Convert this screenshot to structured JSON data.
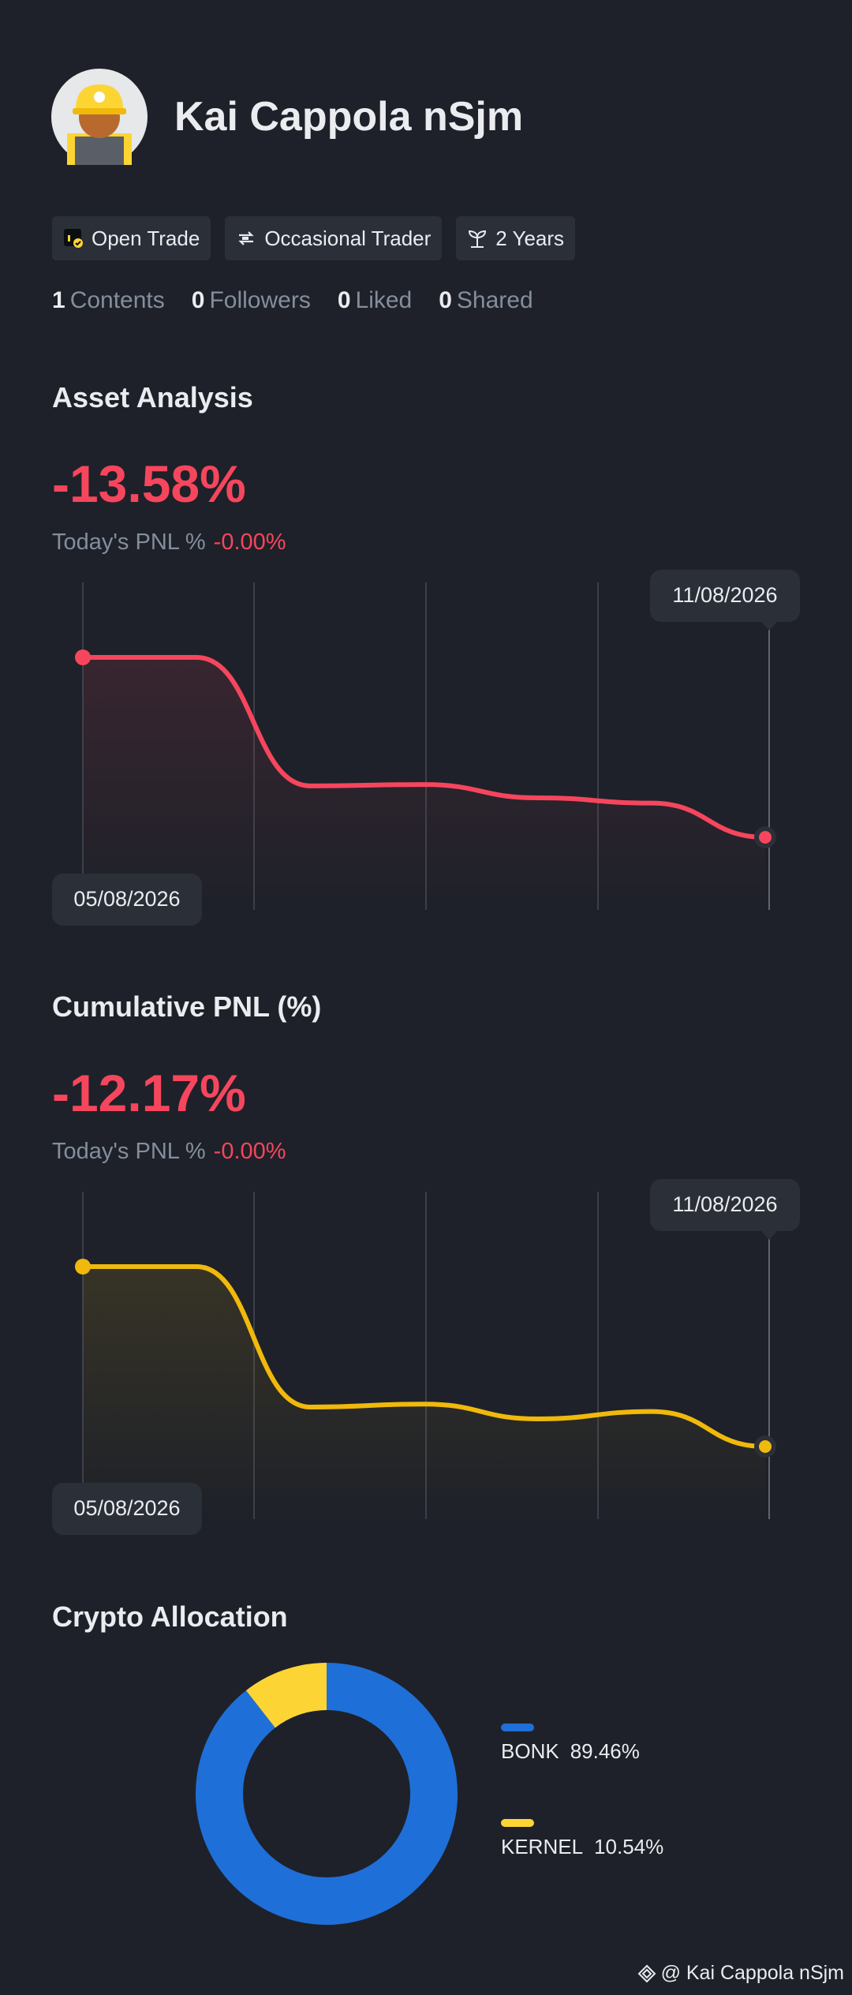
{
  "profile": {
    "name": "Kai Cappola nSjm",
    "tags": [
      "Open Trade",
      "Occasional Trader",
      "2 Years"
    ],
    "stats": [
      {
        "value": 1,
        "label": "Contents"
      },
      {
        "value": 0,
        "label": "Followers"
      },
      {
        "value": 0,
        "label": "Liked"
      },
      {
        "value": 0,
        "label": "Shared"
      }
    ]
  },
  "chart_data": [
    {
      "type": "line",
      "title": "Asset Analysis",
      "summary_value": "-13.58%",
      "today_label": "Today's PNL %",
      "today_value": "-0.00%",
      "x": [
        "05/08/2026",
        null,
        null,
        null,
        null,
        null,
        "11/08/2026"
      ],
      "series": [
        {
          "color": "#f6465d",
          "values": [
            0,
            0,
            -9.7,
            -9.6,
            -10.6,
            -11.0,
            -13.58
          ]
        }
      ]
    },
    {
      "type": "line",
      "title": "Cumulative PNL (%)",
      "summary_value": "-12.17%",
      "today_label": "Today's PNL %",
      "today_value": "-0.00%",
      "x": [
        "05/08/2026",
        null,
        null,
        null,
        null,
        null,
        "11/08/2026"
      ],
      "series": [
        {
          "color": "#f0b90b",
          "values": [
            0,
            0,
            -9.5,
            -9.3,
            -10.3,
            -9.8,
            -12.17
          ]
        }
      ]
    },
    {
      "type": "pie",
      "title": "Crypto Allocation",
      "categories": [
        "BONK",
        "KERNEL"
      ],
      "values": [
        89.46,
        10.54
      ],
      "value_labels": [
        "89.46%",
        "10.54%"
      ],
      "colors": [
        "#1f6fd8",
        "#fcd535"
      ]
    }
  ],
  "footer": "@ Kai Cappola nSjm"
}
